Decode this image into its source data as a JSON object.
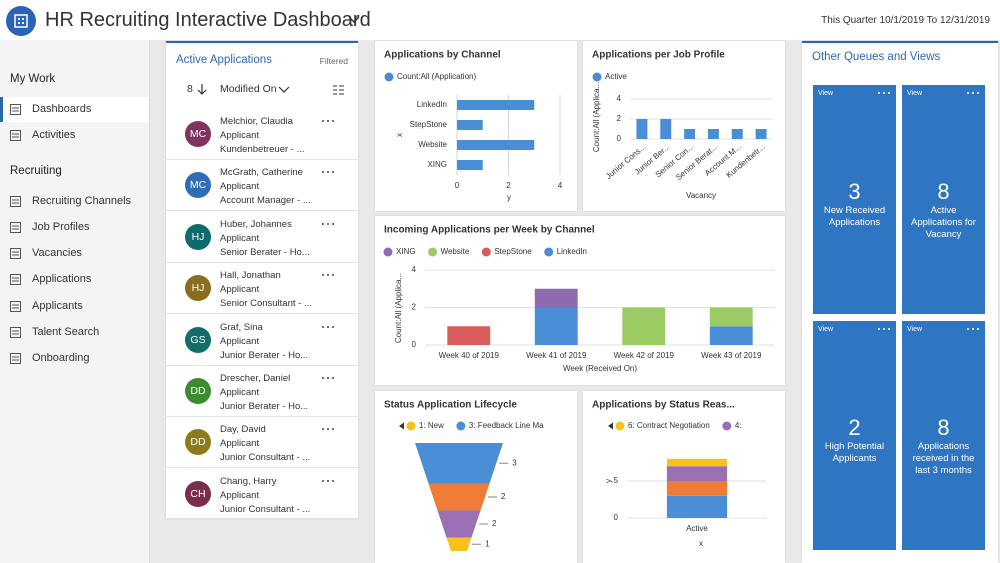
{
  "header": {
    "title": "HR Recruiting Interactive Dashboard",
    "period": "This Quarter 10/1/2019 To 12/31/2019"
  },
  "nav": {
    "sections": [
      {
        "title": "My Work",
        "items": [
          "Dashboards",
          "Activities"
        ]
      },
      {
        "title": "Recruiting",
        "items": [
          "Recruiting Channels",
          "Job Profiles",
          "Vacancies",
          "Applications",
          "Applicants",
          "Talent Search",
          "Onboarding"
        ]
      }
    ]
  },
  "applications": {
    "title": "Active Applications",
    "filter": "Filtered",
    "count": 8,
    "sort": "Modified On",
    "items": [
      {
        "initials": "MC",
        "name": "Melchior, Claudia",
        "role": "Applicant",
        "detail": "Kundenbetreuer - ...",
        "color": "#82325f"
      },
      {
        "initials": "MC",
        "name": "McGrath, Catherine",
        "role": "Applicant",
        "detail": "Account Manager - ...",
        "color": "#2f6eb5"
      },
      {
        "initials": "HJ",
        "name": "Huber, Johannes",
        "role": "Applicant",
        "detail": "Senior Berater - Ho...",
        "color": "#0e6b6b"
      },
      {
        "initials": "HJ",
        "name": "Hall, Jonathan",
        "role": "Applicant",
        "detail": "Senior Consultant - ...",
        "color": "#8a6d1e"
      },
      {
        "initials": "GS",
        "name": "Graf, Sina",
        "role": "Applicant",
        "detail": "Junior Berater - Ho...",
        "color": "#136d6a"
      },
      {
        "initials": "DD",
        "name": "Drescher, Daniel",
        "role": "Applicant",
        "detail": "Junior Berater - Ho...",
        "color": "#3b8c2e"
      },
      {
        "initials": "DD",
        "name": "Day, David",
        "role": "Applicant",
        "detail": "Junior Consultant - ...",
        "color": "#8c7a1b"
      },
      {
        "initials": "CH",
        "name": "Chang, Harry",
        "role": "Applicant",
        "detail": "Junior Consultant - ...",
        "color": "#7a2d4e"
      }
    ]
  },
  "chart_data": [
    {
      "type": "bar",
      "horizontal": true,
      "title": "Applications by Channel",
      "categories": [
        "LinkedIn",
        "StepStone",
        "Website",
        "XING"
      ],
      "series": [
        {
          "name": "Count:All (Application)",
          "color": "#4a8fd6",
          "values": [
            3,
            1,
            3,
            1
          ]
        }
      ],
      "xlim": [
        0,
        4
      ],
      "xticks": [
        0,
        2,
        4
      ],
      "x_label": "y",
      "y_label": "x",
      "grid": true
    },
    {
      "type": "bar",
      "title": "Applications per Job Profile",
      "categories": [
        "Junior Cons...",
        "Junior Ber...",
        "Senior Con...",
        "Senior Berat...",
        "Account M...",
        "Kundenbetr..."
      ],
      "series": [
        {
          "name": "Active",
          "color": "#4a8fd6",
          "values": [
            2,
            2,
            1,
            1,
            1,
            1
          ]
        }
      ],
      "ylim": [
        0,
        4
      ],
      "yticks": [
        0,
        2,
        4
      ],
      "x_label": "Vacancy",
      "y_label": "Count:All (Applica...",
      "grid": true
    },
    {
      "type": "bar",
      "stacked": true,
      "title": "Incoming Applications per Week by Channel",
      "categories": [
        "Week 40 of 2019",
        "Week 41 of 2019",
        "Week 42 of 2019",
        "Week 43 of 2019"
      ],
      "series": [
        {
          "name": "XING",
          "color": "#8e6bb0",
          "values": [
            0,
            1,
            0,
            0
          ]
        },
        {
          "name": "Website",
          "color": "#9ccb64",
          "values": [
            0,
            0,
            2,
            1
          ]
        },
        {
          "name": "StepStone",
          "color": "#d95d5b",
          "values": [
            1,
            0,
            0,
            0
          ]
        },
        {
          "name": "LinkedIn",
          "color": "#4a8fd6",
          "values": [
            0,
            2,
            0,
            1
          ]
        }
      ],
      "ylim": [
        0,
        4
      ],
      "yticks": [
        0,
        2,
        4
      ],
      "x_label": "Week (Received On)",
      "y_label": "Count:All (Applica...",
      "grid": true
    },
    {
      "type": "funnel",
      "title": "Status Application Lifecycle",
      "categories": [
        "3: Feedback Line Ma",
        null,
        null,
        "1: New"
      ],
      "values": [
        3,
        2,
        2,
        1
      ],
      "colors": [
        "#4a8fd6",
        "#ee7c36",
        "#9b6fb3",
        "#f6c21b"
      ]
    },
    {
      "type": "bar",
      "stacked": true,
      "title": "Applications by Status Reas...",
      "categories": [
        "Active"
      ],
      "series": [
        {
          "name": "6: Contract Negotiation",
          "color": "#f6c21b",
          "values": [
            1
          ]
        },
        {
          "name": "4:",
          "color": "#9b6fb3",
          "values": [
            2
          ]
        },
        {
          "name": null,
          "color": "#ee7c36",
          "values": [
            2
          ]
        },
        {
          "name": null,
          "color": "#4a8fd6",
          "values": [
            3
          ]
        }
      ],
      "ylim": [
        0,
        10
      ],
      "yticks": [
        0,
        5
      ],
      "x_label": "x",
      "y_label": "y",
      "grid": true
    }
  ],
  "queues": {
    "title": "Other Queues and Views",
    "color": "#2e75c2",
    "tiles": [
      {
        "link": "View",
        "count": 3,
        "label": "New Received Applications"
      },
      {
        "link": "View",
        "count": 8,
        "label": "Active Applications for Vacancy"
      },
      {
        "link": "View",
        "count": 2,
        "label": "High Potential Applicants"
      },
      {
        "link": "View",
        "count": 8,
        "label": "Applications received in the last 3 months"
      }
    ]
  }
}
